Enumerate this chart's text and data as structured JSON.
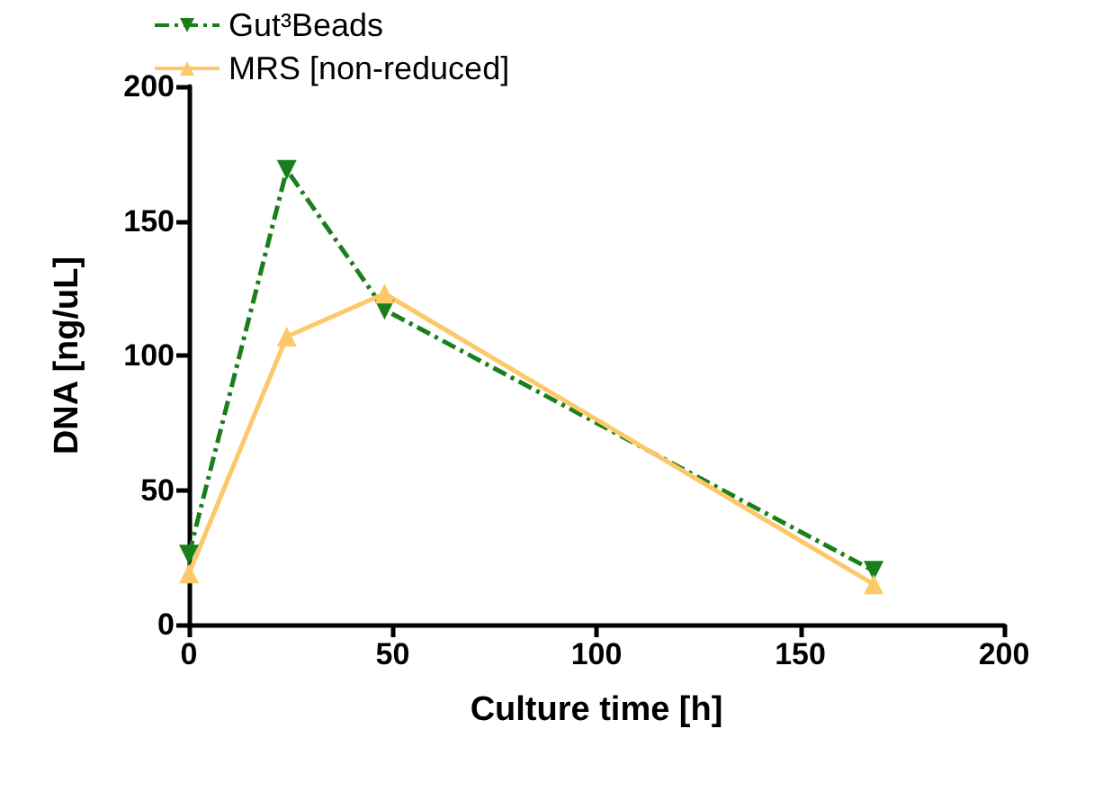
{
  "chart_data": {
    "type": "line",
    "xlabel": "Culture time [h]",
    "ylabel": "DNA [ng/uL]",
    "x": [
      0,
      24,
      48,
      168
    ],
    "series": [
      {
        "name": "Gut³Beads",
        "color": "#1a7f1a",
        "values": [
          26,
          169,
          117,
          20
        ],
        "marker": "triangle-down",
        "line_style": "dashed"
      },
      {
        "name": "MRS [non-reduced]",
        "color": "#fdc86a",
        "values": [
          19,
          107,
          123,
          15
        ],
        "marker": "triangle",
        "line_style": "solid"
      }
    ],
    "xlim": [
      0,
      200
    ],
    "xticks": [
      0,
      50,
      100,
      150,
      200
    ],
    "ylim": [
      0,
      200
    ],
    "yticks": [
      0,
      50,
      100,
      150,
      200
    ],
    "grid": false,
    "legend": "top left"
  }
}
